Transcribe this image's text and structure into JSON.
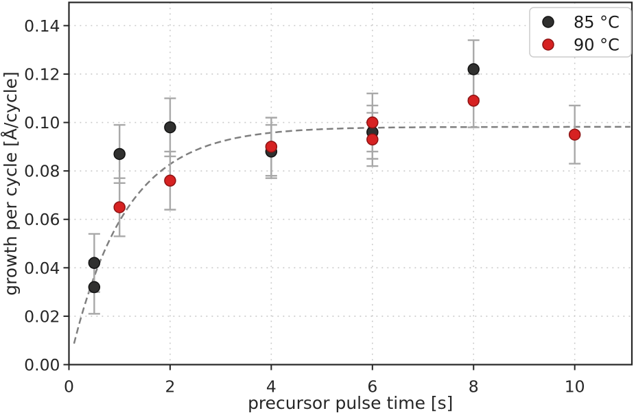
{
  "chart_data": {
    "type": "scatter",
    "title": "",
    "xlabel": "precursor pulse time [s]",
    "ylabel": "growth per cycle [Å/cycle]",
    "xlim": [
      0,
      11.13
    ],
    "ylim": [
      0,
      0.1496
    ],
    "xticks": [
      0,
      2,
      4,
      6,
      8,
      10
    ],
    "xtick_labels": [
      "0",
      "2",
      "4",
      "6",
      "8",
      "10"
    ],
    "yticks": [
      0.0,
      0.02,
      0.04,
      0.06,
      0.08,
      0.1,
      0.12,
      0.14
    ],
    "ytick_labels": [
      "0.00",
      "0.02",
      "0.04",
      "0.06",
      "0.08",
      "0.10",
      "0.12",
      "0.14"
    ],
    "grid": "dotted",
    "legend_position": "upper right",
    "series": [
      {
        "name": "85 °C",
        "marker": "circle",
        "color": "#30302f",
        "edge_color": "#121212",
        "points": [
          {
            "x": 0.5,
            "y": 0.042,
            "err": 0.012
          },
          {
            "x": 0.5,
            "y": 0.032,
            "err": 0.011
          },
          {
            "x": 1.0,
            "y": 0.087,
            "err": 0.012
          },
          {
            "x": 2.0,
            "y": 0.098,
            "err": 0.012
          },
          {
            "x": 4.0,
            "y": 0.088,
            "err": 0.011
          },
          {
            "x": 6.0,
            "y": 0.096,
            "err": 0.011
          },
          {
            "x": 8.0,
            "y": 0.122,
            "err": 0.012
          }
        ]
      },
      {
        "name": "90 °C",
        "marker": "circle",
        "color": "#d62222",
        "edge_color": "#8d1313",
        "points": [
          {
            "x": 1.0,
            "y": 0.065,
            "err": 0.012
          },
          {
            "x": 2.0,
            "y": 0.076,
            "err": 0.012
          },
          {
            "x": 4.0,
            "y": 0.09,
            "err": 0.012
          },
          {
            "x": 6.0,
            "y": 0.1,
            "err": 0.012
          },
          {
            "x": 6.0,
            "y": 0.093,
            "err": 0.011
          },
          {
            "x": 8.0,
            "y": 0.109,
            "err": 0.011
          },
          {
            "x": 10.0,
            "y": 0.095,
            "err": 0.012
          }
        ]
      }
    ],
    "fit_curve": {
      "model": "y = A * (1 - exp(-t/tau))",
      "A": 0.0982,
      "tau": 1.08,
      "x_start": 0.1,
      "x_end": 11.13,
      "style": "dashed",
      "color": "#7f7f7f"
    },
    "colors": {
      "errorbar": "#a8a8a8",
      "grid": "#c6c6c6",
      "axes": "#262626",
      "tick_text": "#262626",
      "legend_border": "#cccccc",
      "legend_bg": "#ffffff"
    }
  }
}
